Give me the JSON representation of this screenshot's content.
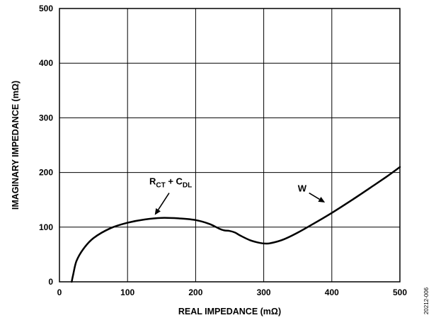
{
  "chart_data": {
    "type": "line",
    "xlabel": "REAL IMPEDANCE (mΩ)",
    "ylabel": "IMAGINARY IMPEDANCE (mΩ)",
    "xlim": [
      0,
      500
    ],
    "ylim": [
      0,
      500
    ],
    "x_ticks": [
      "0",
      "100",
      "200",
      "300",
      "400",
      "500"
    ],
    "y_ticks": [
      "0",
      "100",
      "200",
      "300",
      "400",
      "500"
    ],
    "grid": true,
    "series": [
      {
        "x": [
          18,
          20,
          25,
          35,
          50,
          75,
          100,
          125,
          150,
          175,
          200,
          220,
          235,
          242,
          250,
          258,
          265,
          280,
          295,
          305,
          315,
          330,
          350,
          370,
          400,
          430,
          460,
          480,
          500
        ],
        "y": [
          0,
          12,
          38,
          60,
          80,
          98,
          108,
          114,
          117,
          116,
          113,
          106,
          97,
          94,
          93,
          90,
          85,
          76,
          71,
          70,
          72,
          78,
          90,
          104,
          126,
          150,
          175,
          192,
          210
        ]
      }
    ],
    "annotations": [
      {
        "text_main": "R",
        "text_sub": "CT",
        "text_mid": " + C",
        "text_sub2": "DL",
        "x": 132,
        "y": 178,
        "arrow_to_x": 140,
        "arrow_to_y": 117
      },
      {
        "text": "W",
        "x": 350,
        "y": 165,
        "arrow_to_x": 390,
        "arrow_to_y": 145
      }
    ],
    "figure_id": "20212-006"
  }
}
